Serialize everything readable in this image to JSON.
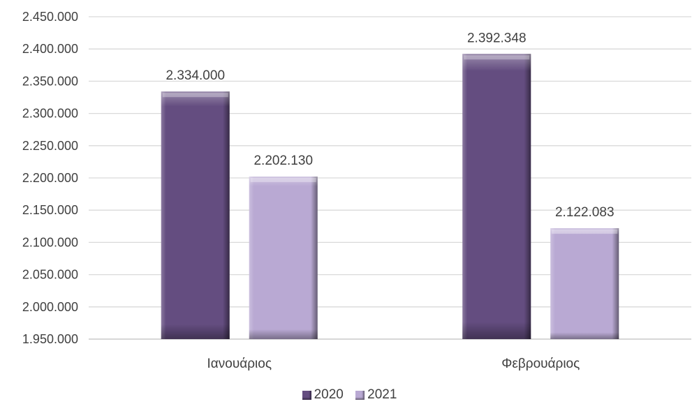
{
  "chart_data": {
    "type": "bar",
    "categories": [
      "Ιανουάριος",
      "Φεβρουάριος"
    ],
    "series": [
      {
        "name": "2020",
        "values": [
          2334000,
          2392348
        ],
        "labels": [
          "2.334.000",
          "2.392.348"
        ],
        "color": "#644d80"
      },
      {
        "name": "2021",
        "values": [
          2202130,
          2122083
        ],
        "labels": [
          "2.202.130",
          "2.122.083"
        ],
        "color": "#b9a9d3"
      }
    ],
    "ylim": [
      1950000,
      2450000
    ],
    "y_ticks": [
      "1.950.000",
      "2.000.000",
      "2.050.000",
      "2.100.000",
      "2.150.000",
      "2.200.000",
      "2.250.000",
      "2.300.000",
      "2.350.000",
      "2.400.000",
      "2.450.000"
    ],
    "y_tick_values": [
      1950000,
      2000000,
      2050000,
      2100000,
      2150000,
      2200000,
      2250000,
      2300000,
      2350000,
      2400000,
      2450000
    ],
    "title": "",
    "xlabel": "",
    "ylabel": "",
    "grid": true,
    "legend_position": "bottom"
  }
}
